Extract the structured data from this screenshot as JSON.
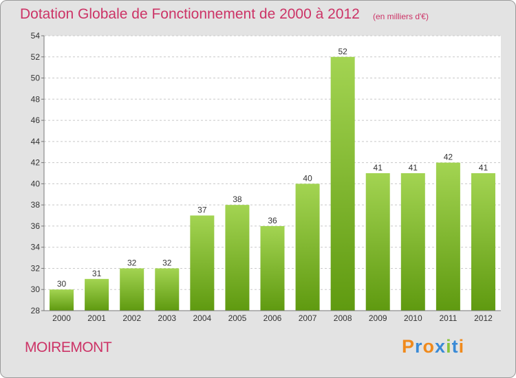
{
  "header": {
    "title": "Dotation Globale de Fonctionnement de 2000 à 2012",
    "unit": "(en milliers d'€)"
  },
  "footer": {
    "commune": "MOIREMONT",
    "logo": "Proxiti"
  },
  "colors": {
    "title": "#cc3366",
    "bar_light": "#a3d452",
    "bar_dark": "#5f9a10",
    "background": "#e3e3e3",
    "plot_background": "#ffffff",
    "logo_letters": [
      "#f08a1c",
      "#3a8ad6",
      "#f08a1c",
      "#3a8ad6",
      "#8ac43c",
      "#3a8ad6",
      "#f08a1c"
    ]
  },
  "chart_data": {
    "type": "bar",
    "categories": [
      "2000",
      "2001",
      "2002",
      "2003",
      "2004",
      "2005",
      "2006",
      "2007",
      "2008",
      "2009",
      "2010",
      "2011",
      "2012"
    ],
    "values": [
      30,
      31,
      32,
      32,
      37,
      38,
      36,
      40,
      52,
      41,
      41,
      42,
      41
    ],
    "title": "Dotation Globale de Fonctionnement de 2000 à 2012",
    "subtitle": "(en milliers d'€)",
    "ylim": [
      28,
      54
    ],
    "yticks": [
      28,
      30,
      32,
      34,
      36,
      38,
      40,
      42,
      44,
      46,
      48,
      50,
      52,
      54
    ],
    "grid": true,
    "legend": "none"
  }
}
